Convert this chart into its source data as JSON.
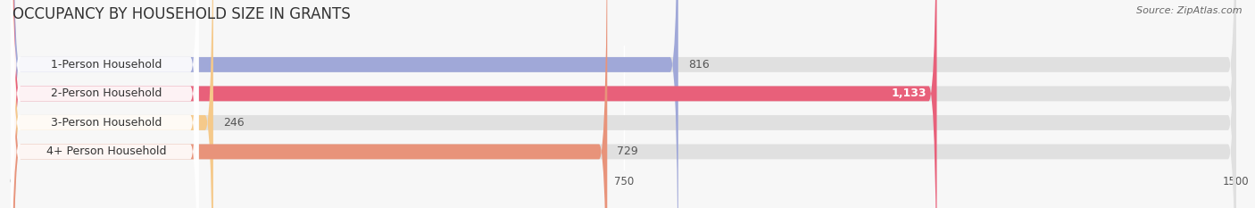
{
  "title": "OCCUPANCY BY HOUSEHOLD SIZE IN GRANTS",
  "source": "Source: ZipAtlas.com",
  "categories": [
    "1-Person Household",
    "2-Person Household",
    "3-Person Household",
    "4+ Person Household"
  ],
  "values": [
    816,
    1133,
    246,
    729
  ],
  "bar_colors": [
    "#a0a8d8",
    "#e8607a",
    "#f5c98a",
    "#e8937a"
  ],
  "xlim": [
    0,
    1500
  ],
  "xticks": [
    0,
    750,
    1500
  ],
  "background_color": "#f7f7f7",
  "title_fontsize": 12,
  "source_fontsize": 8,
  "label_fontsize": 9,
  "value_fontsize": 9,
  "bar_height": 0.52,
  "value_inside_threshold": 1000
}
